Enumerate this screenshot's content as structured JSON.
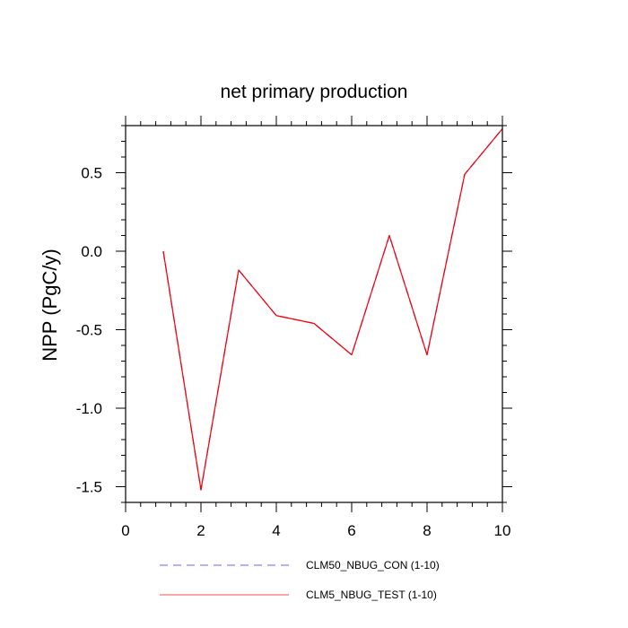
{
  "chart_data": {
    "type": "line",
    "title": "net primary production",
    "xlabel": "",
    "ylabel": "NPP  (PgC/y)",
    "xlim": [
      0,
      10
    ],
    "ylim": [
      -1.6,
      0.8
    ],
    "x_ticks": [
      0,
      2,
      4,
      6,
      8,
      10
    ],
    "x_tick_labels": [
      "0",
      "2",
      "4",
      "6",
      "8",
      "10"
    ],
    "y_ticks": [
      -1.5,
      -1.0,
      -0.5,
      0.0,
      0.5
    ],
    "y_tick_labels": [
      "-1.5",
      "-1.0",
      "-0.5",
      "0.0",
      "0.5"
    ],
    "x": [
      1,
      2,
      3,
      4,
      5,
      6,
      7,
      8,
      9,
      10
    ],
    "series": [
      {
        "name": "CLM50_NBUG_CON (1-10)",
        "values": [
          0.0,
          -1.52,
          -0.12,
          -0.41,
          -0.46,
          -0.66,
          0.1,
          -0.66,
          0.49,
          0.78
        ],
        "color": "#0000ff",
        "style": "dashed"
      },
      {
        "name": "CLM5_NBUG_TEST (1-10)",
        "values": [
          0.0,
          -1.52,
          -0.12,
          -0.41,
          -0.46,
          -0.66,
          0.1,
          -0.66,
          0.49,
          0.78
        ],
        "color": "#ff0000",
        "style": "solid"
      }
    ],
    "grid": false,
    "legend_position": "bottom"
  }
}
